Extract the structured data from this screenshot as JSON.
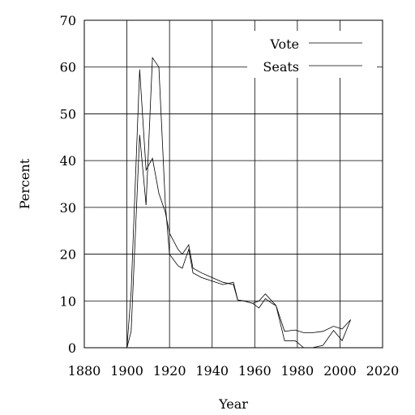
{
  "chart_data": {
    "type": "line",
    "xlabel": "Year",
    "ylabel": "Percent",
    "xlim": [
      1880,
      2020
    ],
    "ylim": [
      0,
      70
    ],
    "xticks": [
      1880,
      1900,
      1920,
      1940,
      1960,
      1980,
      2000,
      2020
    ],
    "yticks": [
      0,
      10,
      20,
      30,
      40,
      50,
      60,
      70
    ],
    "grid": true,
    "legend": "top-right",
    "series": [
      {
        "name": "Vote",
        "x": [
          1900,
          1902,
          1906,
          1909,
          1912,
          1915,
          1918,
          1920,
          1924,
          1926,
          1929,
          1931,
          1935,
          1945,
          1950,
          1952,
          1955,
          1959,
          1962,
          1965,
          1968,
          1970,
          1974,
          1979,
          1983,
          1987,
          1992,
          1997,
          2001,
          2005
        ],
        "values": [
          0,
          12,
          59.5,
          38,
          40.5,
          33,
          29,
          24.5,
          21,
          20,
          22,
          17,
          16,
          14,
          13.5,
          10.2,
          10,
          9.5,
          10,
          11.5,
          10,
          9,
          3.5,
          3.8,
          3.2,
          3.2,
          3.5,
          4.6,
          4,
          6
        ]
      },
      {
        "name": "Seats",
        "x": [
          1900,
          1902,
          1906,
          1909,
          1912,
          1915,
          1918,
          1920,
          1924,
          1926,
          1929,
          1931,
          1935,
          1945,
          1950,
          1952,
          1955,
          1959,
          1962,
          1965,
          1968,
          1970,
          1974,
          1979,
          1983,
          1987,
          1992,
          1997,
          2001,
          2005
        ],
        "values": [
          0,
          3.5,
          45.5,
          30.5,
          62,
          60,
          31,
          20,
          17.5,
          17,
          21,
          16,
          15,
          13.5,
          14,
          10.2,
          10,
          9.5,
          8.5,
          10.5,
          9.5,
          9,
          1.5,
          1.5,
          0,
          0,
          0.5,
          3.7,
          1.5,
          6
        ]
      }
    ]
  }
}
